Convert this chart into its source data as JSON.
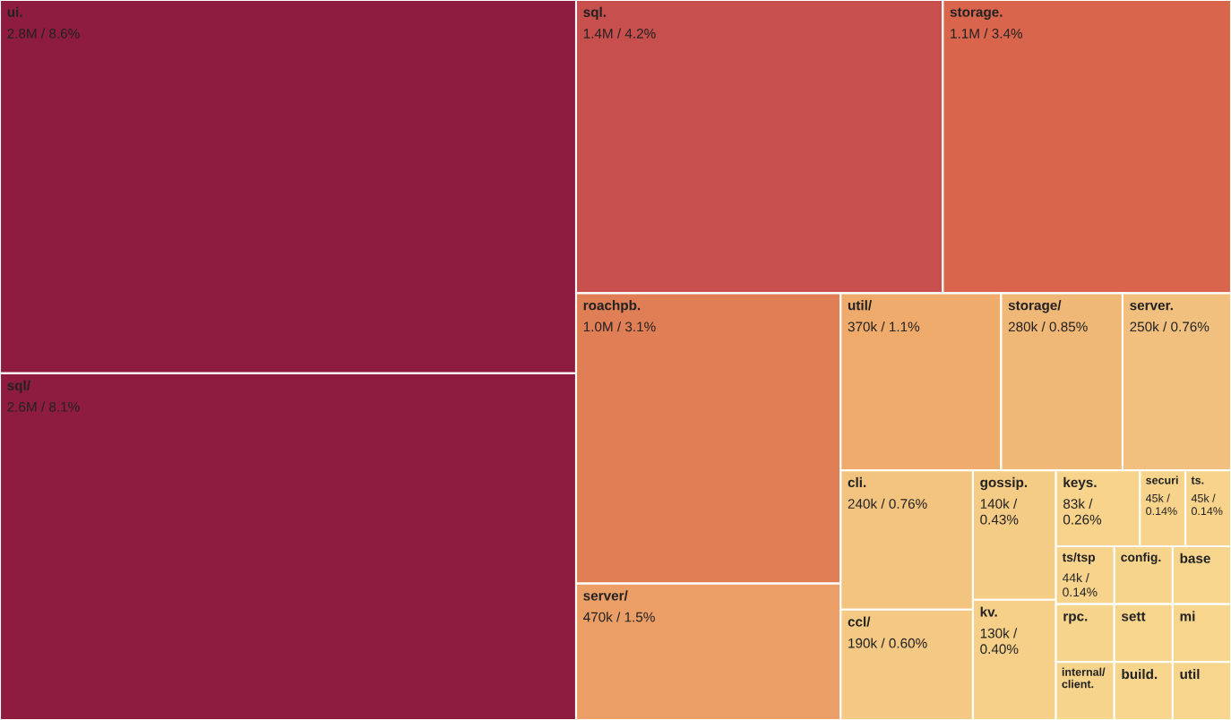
{
  "chart_data": {
    "type": "other",
    "categories": [
      "ui.",
      "sql/",
      "sql.",
      "storage.",
      "roachpb.",
      "server/",
      "util/",
      "storage/",
      "server.",
      "cli.",
      "ccl/",
      "gossip.",
      "kv.",
      "keys.",
      "securi",
      "ts.",
      "ts/tsp",
      "rpc.",
      "internal/client.",
      "config.",
      "base",
      "sett",
      "build.",
      "mi",
      "util"
    ],
    "values": [
      2800000,
      2600000,
      1400000,
      1100000,
      1000000,
      470000,
      370000,
      280000,
      250000,
      240000,
      190000,
      140000,
      130000,
      83000,
      45000,
      45000,
      44000,
      null,
      null,
      null,
      null,
      null,
      null,
      null,
      null
    ],
    "value_labels": [
      "2.8M / 8.6%",
      "2.6M / 8.1%",
      "1.4M / 4.2%",
      "1.1M / 3.4%",
      "1.0M / 3.1%",
      "470k / 1.5%",
      "370k / 1.1%",
      "280k / 0.85%",
      "250k / 0.76%",
      "240k / 0.76%",
      "190k / 0.60%",
      "140k / 0.43%",
      "130k / 0.40%",
      "83k / 0.26%",
      "45k / 0.14%",
      "45k / 0.14%",
      "44k / 0.14%",
      null,
      null,
      null,
      null,
      null,
      null,
      null,
      null
    ],
    "colors": [
      "#8e1c40",
      "#8e1c40",
      "#c74f4d",
      "#d9664c",
      "#e07f56",
      "#eb9f66",
      "#eeab6b",
      "#f0b877",
      "#f2c07e",
      "#f3c47f",
      "#f4c983",
      "#f5cc86",
      "#f6d088",
      "#f7d38b",
      "#f7d38b",
      "#f7d38b",
      "#f7d38b",
      "#f7d48c",
      "#f7d48c",
      "#f7d48c",
      "#f7d58d",
      "#f7d58d",
      "#f7d58d",
      "#f7d58d",
      "#f7d58d"
    ]
  }
}
